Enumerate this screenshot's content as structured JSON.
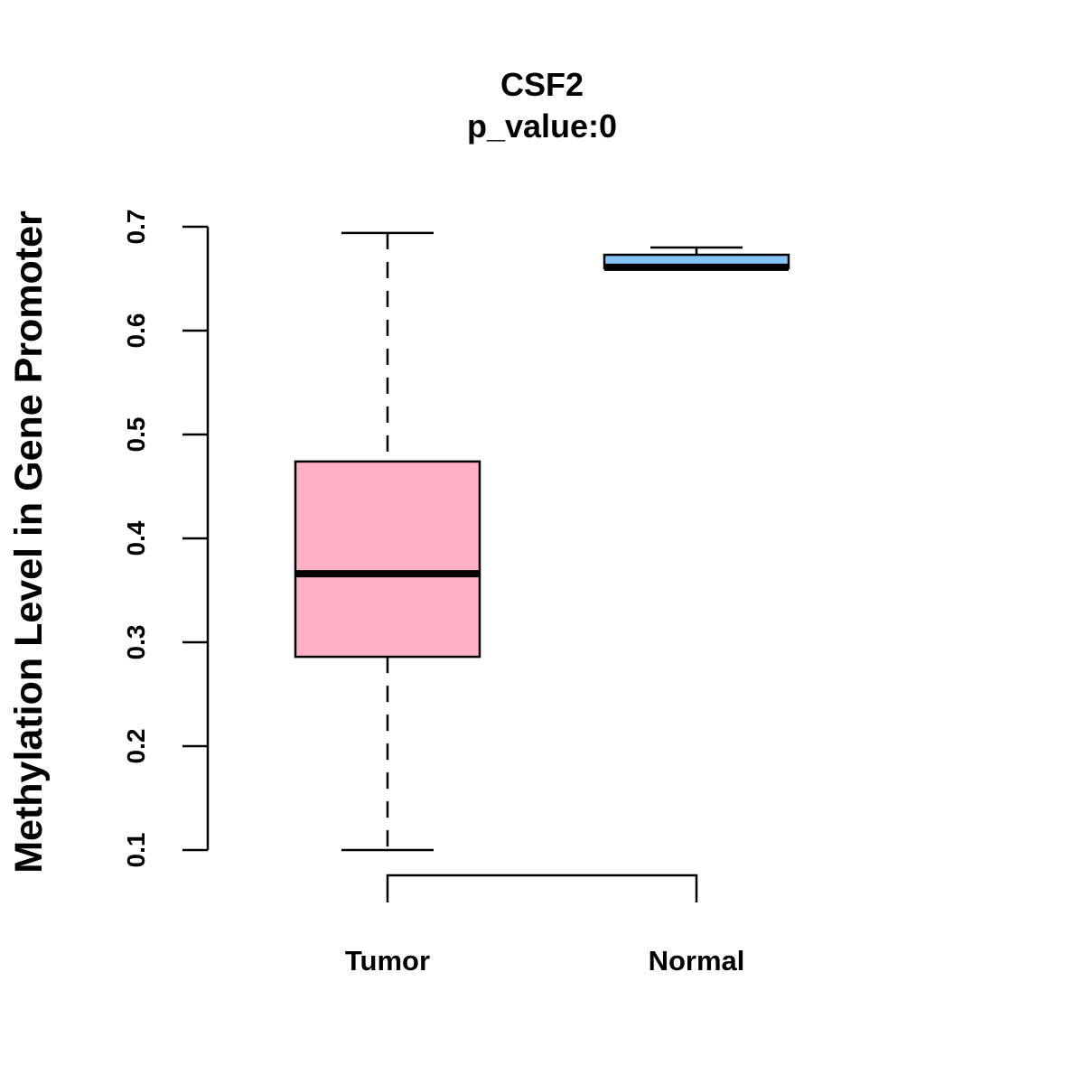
{
  "chart_data": {
    "type": "box",
    "title": "CSF2",
    "subtitle": "p_value:0",
    "xlabel": "",
    "ylabel": "Methylation Level in Gene Promoter",
    "ylim": [
      0.1,
      0.7
    ],
    "yticks": [
      0.1,
      0.2,
      0.3,
      0.4,
      0.5,
      0.6,
      0.7
    ],
    "ytick_labels": [
      "0.1",
      "0.2",
      "0.3",
      "0.4",
      "0.5",
      "0.6",
      "0.7"
    ],
    "categories": [
      "Tumor",
      "Normal"
    ],
    "boxes": [
      {
        "name": "Tumor",
        "min": 0.1,
        "q1": 0.286,
        "median": 0.366,
        "q3": 0.474,
        "max": 0.694,
        "color": "#FFB0C4"
      },
      {
        "name": "Normal",
        "min": 0.66,
        "q1": 0.66,
        "median": 0.661,
        "q3": 0.673,
        "max": 0.68,
        "color": "#84C4F8"
      }
    ],
    "bracket": {
      "from": "Tumor",
      "to": "Normal"
    }
  }
}
